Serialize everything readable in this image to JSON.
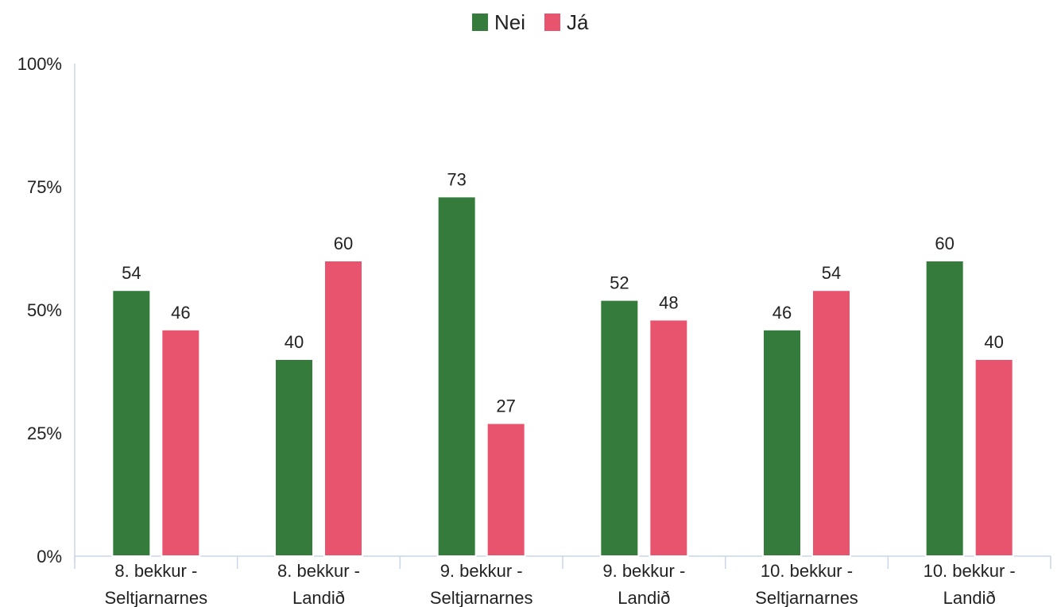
{
  "chart_data": {
    "type": "bar",
    "title": "",
    "xlabel": "",
    "ylabel": "",
    "categories": [
      [
        "8. bekkur -",
        "Seltjarnarnes"
      ],
      [
        "8. bekkur -",
        "Landið"
      ],
      [
        "9. bekkur -",
        "Seltjarnarnes"
      ],
      [
        "9. bekkur -",
        "Landið"
      ],
      [
        "10. bekkur -",
        "Seltjarnarnes"
      ],
      [
        "10. bekkur -",
        "Landið"
      ]
    ],
    "series": [
      {
        "name": "Nei",
        "color": "#357c3c",
        "values": [
          54,
          40,
          73,
          52,
          46,
          60
        ]
      },
      {
        "name": "Já",
        "color": "#e8536e",
        "values": [
          46,
          60,
          27,
          48,
          54,
          40
        ]
      }
    ],
    "ylim": [
      0,
      100
    ],
    "yticks": [
      {
        "value": 0,
        "label": "0%"
      },
      {
        "value": 25,
        "label": "25%"
      },
      {
        "value": 50,
        "label": "50%"
      },
      {
        "value": 75,
        "label": "75%"
      },
      {
        "value": 100,
        "label": "100%"
      }
    ],
    "legend_position": "top-center",
    "grid": false,
    "data_labels": true
  }
}
